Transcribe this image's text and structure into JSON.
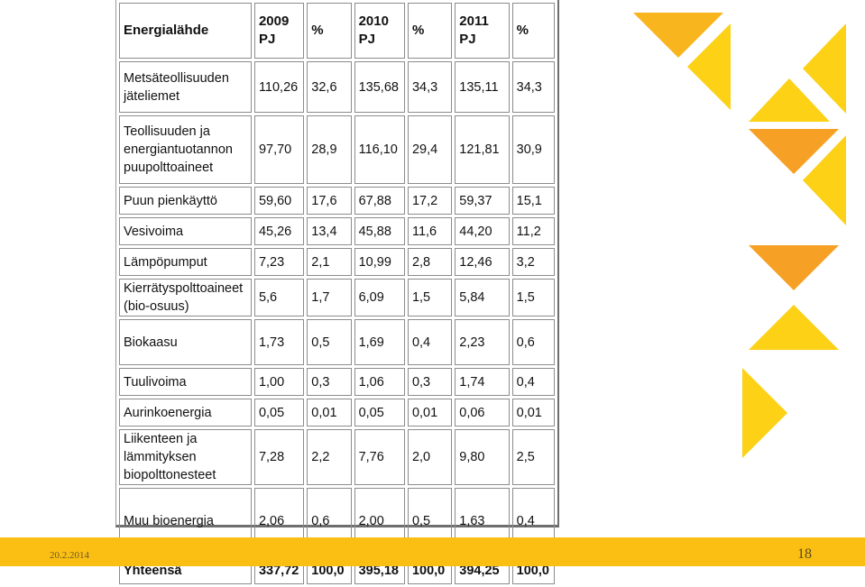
{
  "table": {
    "headers": [
      "Energialähde",
      "2009\nPJ",
      "%",
      "2010\nPJ",
      "%",
      "2011\nPJ",
      "%"
    ],
    "rows": [
      [
        "Metsäteollisuuden\njäteliemet",
        "110,26",
        "32,6",
        "135,68",
        "34,3",
        "135,11",
        "34,3"
      ],
      [
        "Teollisuuden ja\nenergiantuotannon\npuupolttoaineet",
        "97,70",
        "28,9",
        "116,10",
        "29,4",
        "121,81",
        "30,9"
      ],
      [
        "Puun pienkäyttö",
        "59,60",
        "17,6",
        "67,88",
        "17,2",
        "59,37",
        "15,1"
      ],
      [
        "Vesivoima",
        "45,26",
        "13,4",
        "45,88",
        "11,6",
        "44,20",
        "11,2"
      ],
      [
        "Lämpöpumput",
        "7,23",
        "2,1",
        "10,99",
        "2,8",
        "12,46",
        "3,2"
      ],
      [
        "Kierrätyspolttoaineet\n(bio-osuus)",
        "5,6",
        "1,7",
        "6,09",
        "1,5",
        "5,84",
        "1,5"
      ],
      [
        "Biokaasu",
        "1,73",
        "0,5",
        "1,69",
        "0,4",
        "2,23",
        "0,6"
      ],
      [
        "Tuulivoima",
        "1,00",
        "0,3",
        "1,06",
        "0,3",
        "1,74",
        "0,4"
      ],
      [
        "Aurinkoenergia",
        "0,05",
        "0,01",
        "0,05",
        "0,01",
        "0,06",
        "0,01"
      ],
      [
        "Liikenteen ja\nlämmityksen\nbiopolttonesteet",
        "7,28",
        "2,2",
        "7,76",
        "2,0",
        "9,80",
        "2,5"
      ],
      [
        "Muu bioenergia",
        "2,06",
        "0,6",
        "2,00",
        "0,5",
        "1,63",
        "0,4"
      ]
    ],
    "total": [
      "Yhteensä",
      "337,72",
      "100,0",
      "395,18",
      "100,0",
      "394,25",
      "100,0"
    ]
  },
  "footer": {
    "date": "20.2.2014",
    "page": "18"
  },
  "colors": {
    "footer_bar": "#fbbf14",
    "triangle_yellow": "#fcd116",
    "triangle_gold": "#f9b51d",
    "triangle_orange": "#f6a125"
  }
}
